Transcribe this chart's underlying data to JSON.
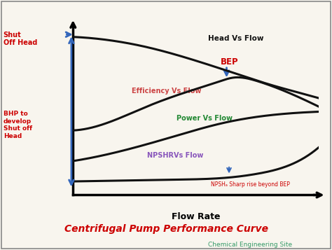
{
  "title": "Centrifugal Pump Performance Curve",
  "subtitle": "Chemical Engineering Site",
  "xlabel": "Flow Rate",
  "background_color": "#f8f5ee",
  "curves": {
    "head": {
      "label": "Head Vs Flow",
      "color": "#111111",
      "x": [
        0.0,
        0.15,
        0.3,
        0.5,
        0.65,
        0.8,
        0.95,
        1.0
      ],
      "y": [
        0.93,
        0.91,
        0.87,
        0.79,
        0.72,
        0.65,
        0.59,
        0.57
      ]
    },
    "efficiency": {
      "label": "Efficiency Vs Flow",
      "color": "#111111",
      "x": [
        0.0,
        0.15,
        0.3,
        0.45,
        0.6,
        0.65,
        0.75,
        0.88,
        1.0
      ],
      "y": [
        0.38,
        0.43,
        0.52,
        0.6,
        0.67,
        0.69,
        0.67,
        0.6,
        0.52
      ]
    },
    "power": {
      "label": "Power Vs Flow",
      "color": "#111111",
      "x": [
        0.0,
        0.2,
        0.4,
        0.6,
        0.75,
        0.88,
        1.0
      ],
      "y": [
        0.2,
        0.26,
        0.34,
        0.42,
        0.46,
        0.48,
        0.49
      ]
    },
    "npsh": {
      "label": "NPSHRVs Flow",
      "color": "#111111",
      "x": [
        0.0,
        0.2,
        0.4,
        0.55,
        0.65,
        0.75,
        0.88,
        1.0
      ],
      "y": [
        0.08,
        0.085,
        0.09,
        0.095,
        0.105,
        0.125,
        0.175,
        0.28
      ]
    }
  },
  "label_colors": {
    "head": "#111111",
    "efficiency": "#cc4444",
    "power": "#228833",
    "npsh": "#8855bb"
  },
  "bep_color": "#cc0000",
  "bep_arrow_color": "#3366bb",
  "shut_off_color": "#cc0000",
  "bhp_color": "#cc0000",
  "npsh_rise_color": "#cc0000",
  "title_color": "#cc0000",
  "subtitle_color": "#339966",
  "axis_arrow_color": "#3366bb"
}
